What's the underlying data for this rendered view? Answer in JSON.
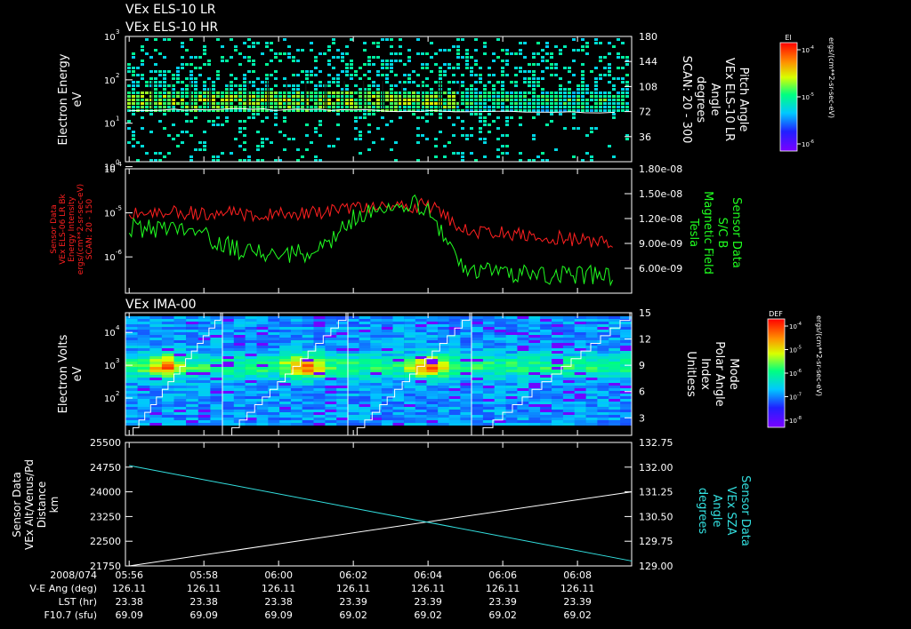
{
  "panel_titles": {
    "p1_lr": "VEx ELS-10 LR",
    "p1_hr": "VEx ELS-10 HR",
    "p3": "VEx IMA-00"
  },
  "colors": {
    "background": "#000000",
    "axis": "#ffffff",
    "flux_series": "#ff2020",
    "bfield_series": "#20ff20",
    "sza_series": "#33e0e0",
    "alt_series": "#ffffff"
  },
  "chart_data": [
    {
      "id": "els-spectrogram",
      "type": "heatmap",
      "ylabel": [
        "Electron Energy",
        "eV"
      ],
      "yticks": [
        {
          "exp": "0",
          "value": 1
        },
        {
          "exp": "1",
          "value": 10
        },
        {
          "exp": "2",
          "value": 100
        },
        {
          "exp": "3",
          "value": 1000
        }
      ],
      "yscale": "log",
      "ylim": [
        1,
        1000
      ],
      "y2label": [
        "Pitch Angle",
        "VEx ELS-10 LR",
        "Angle",
        "degrees",
        "SCAN: 20 - 300"
      ],
      "y2ticks": [
        "36",
        "72",
        "108",
        "144",
        "180"
      ],
      "y2lim": [
        0,
        180
      ],
      "pitch_angle_trace": {
        "x": [
          "05:56",
          "05:59",
          "06:02",
          "06:05",
          "06:09"
        ],
        "y": [
          74,
          75,
          74,
          72,
          71
        ]
      },
      "colorbar": {
        "title": "El",
        "unit": "ergs/(cm**2-sr-sec-eV)",
        "ticks": [
          {
            "exp": "-4",
            "value": 0.0001
          },
          {
            "exp": "-5",
            "value": 1e-05
          },
          {
            "exp": "-6",
            "value": 1e-06
          }
        ]
      }
    },
    {
      "id": "flux-bfield",
      "type": "line",
      "ylabel": [
        "Sensor Data",
        "VEx ELS-06 LR Bk",
        "Energy Intensity",
        "ergs/(cm**2-sr-sec-eV)",
        "SCAN: 20 - 150"
      ],
      "yticks": [
        {
          "exp": "-6",
          "value": 1e-06
        },
        {
          "exp": "-5",
          "value": 1e-05
        },
        {
          "exp": "-4",
          "value": 0.0001
        }
      ],
      "yscale": "log",
      "y2label": [
        "Sensor Data",
        "S/C B",
        "Magnetic Field",
        "Tesla"
      ],
      "y2ticks": [
        "6.00e-09",
        "9.00e-09",
        "1.20e-08",
        "1.50e-08",
        "1.80e-08"
      ],
      "y2lim": [
        3e-09,
        1.8e-08
      ],
      "series": [
        {
          "x": [
            "05:56",
            "05:58",
            "06:00",
            "06:02",
            "06:03",
            "06:04",
            "06:05",
            "06:07",
            "06:09"
          ],
          "y": [
            1.1e-05,
            1e-05,
            9e-06,
            1.2e-05,
            1.3e-05,
            1.5e-05,
            4e-06,
            3e-06,
            2e-06
          ]
        },
        {
          "x": [
            "05:56",
            "05:57",
            "05:58",
            "05:59",
            "06:00",
            "06:01",
            "06:02",
            "06:03",
            "06:04",
            "06:05",
            "06:06",
            "06:08",
            "06:09"
          ],
          "y": [
            1.1e-08,
            1.05e-08,
            1e-08,
            8e-09,
            7.5e-09,
            8e-09,
            1.2e-08,
            1.4e-08,
            1.35e-08,
            6e-09,
            5.3e-09,
            5.2e-09,
            5.1e-09
          ]
        }
      ]
    },
    {
      "id": "ima-spectrogram",
      "type": "heatmap",
      "ylabel": [
        "Electron Volts",
        "eV"
      ],
      "yticks": [
        {
          "exp": "2",
          "value": 100
        },
        {
          "exp": "3",
          "value": 1000
        },
        {
          "exp": "4",
          "value": 10000
        }
      ],
      "yscale": "log",
      "y2label": [
        "Mode",
        "Polar Angle",
        "Index",
        "Unitless"
      ],
      "y2ticks": [
        "3",
        "6",
        "9",
        "12",
        "15"
      ],
      "y2lim": [
        1,
        15
      ],
      "colorbar": {
        "title": "DEF",
        "unit": "ergs/(cm**2-sr-sec-eV)",
        "ticks": [
          {
            "exp": "-4",
            "value": 0.0001
          },
          {
            "exp": "-5",
            "value": 1e-05
          },
          {
            "exp": "-6",
            "value": 1e-06
          },
          {
            "exp": "-7",
            "value": 1e-07
          },
          {
            "exp": "-8",
            "value": 1e-08
          }
        ]
      }
    },
    {
      "id": "alt-sza",
      "type": "line",
      "ylabel": [
        "Sensor Data",
        "VEx Alt/Venus/Pd",
        "Distance",
        "km"
      ],
      "yticks": [
        "21750",
        "22500",
        "23250",
        "24000",
        "24750",
        "25500"
      ],
      "ylim": [
        21750,
        25500
      ],
      "y2label": [
        "Sensor Data",
        "VEx SZA",
        "Angle",
        "degrees"
      ],
      "y2ticks": [
        "129.00",
        "129.75",
        "130.50",
        "131.25",
        "132.00",
        "132.75"
      ],
      "y2lim": [
        129,
        132.75
      ],
      "series": [
        {
          "x": [
            "05:56",
            "06:09"
          ],
          "y": [
            21750,
            24000
          ]
        },
        {
          "x": [
            "05:56",
            "06:09"
          ],
          "y": [
            132.05,
            129.15
          ]
        }
      ]
    }
  ],
  "x_axis": {
    "ticks": [
      "05:56",
      "05:58",
      "06:00",
      "06:02",
      "06:04",
      "06:06",
      "06:08"
    ],
    "rows": [
      {
        "label": "2008/074",
        "values": [
          "05:56",
          "05:58",
          "06:00",
          "06:02",
          "06:04",
          "06:06",
          "06:08"
        ]
      },
      {
        "label": "V-E Ang (deg)",
        "values": [
          "126.11",
          "126.11",
          "126.11",
          "126.11",
          "126.11",
          "126.11",
          "126.11"
        ]
      },
      {
        "label": "LST (hr)",
        "values": [
          "23.38",
          "23.38",
          "23.38",
          "23.39",
          "23.39",
          "23.39",
          "23.39"
        ]
      },
      {
        "label": "F10.7 (sfu)",
        "values": [
          "69.09",
          "69.09",
          "69.09",
          "69.02",
          "69.02",
          "69.02",
          "69.02"
        ]
      }
    ]
  }
}
